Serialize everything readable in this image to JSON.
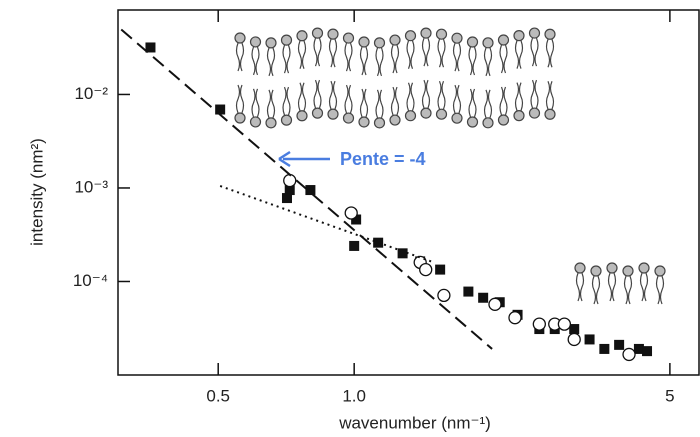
{
  "chart_data": {
    "type": "scatter",
    "xlabel": "wavenumber (nm⁻¹)",
    "ylabel": "intensity (nm²)",
    "log_x": true,
    "log_y": true,
    "xlim": [
      0.3,
      5.8
    ],
    "ylim": [
      1e-05,
      0.08
    ],
    "xticks": [
      0.5,
      {
        "value": 1,
        "label": "1.0"
      },
      5
    ],
    "yticks": [
      {
        "value": 0.01,
        "label": "10⁻²"
      },
      {
        "value": 0.001,
        "label": "10⁻³"
      },
      {
        "value": 0.0001,
        "label": "10⁻⁴"
      }
    ],
    "annotation": {
      "text": "Pente = -4",
      "color": "#4a7de0"
    },
    "series": [
      {
        "marker": "filled-square",
        "color": "#111111",
        "x": [
          0.354,
          0.505,
          0.72,
          0.71,
          0.8,
          1.01,
          1.0,
          1.13,
          1.28,
          1.4,
          1.55,
          1.79,
          1.93,
          2.1,
          2.3,
          2.57,
          2.78,
          3.07,
          3.32,
          3.58,
          3.86,
          4.27,
          4.45
        ],
        "values": [
          0.0318,
          0.0069,
          0.00095,
          0.00078,
          0.00095,
          0.00046,
          0.00024,
          0.00026,
          0.0002,
          0.000164,
          0.000134,
          7.8e-05,
          6.7e-05,
          6e-05,
          4.4e-05,
          3.1e-05,
          3.1e-05,
          3.1e-05,
          2.4e-05,
          1.9e-05,
          2.1e-05,
          1.9e-05,
          1.8e-05
        ]
      },
      {
        "marker": "open-circle",
        "color": "#111111",
        "x": [
          0.72,
          0.985,
          1.4,
          1.44,
          1.58,
          2.05,
          2.27,
          2.57,
          2.78,
          2.92,
          3.07,
          4.06
        ],
        "values": [
          0.0012,
          0.00054,
          0.00016,
          0.000134,
          7.1e-05,
          5.7e-05,
          4.1e-05,
          3.5e-05,
          3.5e-05,
          3.5e-05,
          2.4e-05,
          1.66e-05
        ]
      },
      {
        "marker": "dashed-line",
        "color": "#111111",
        "x": [
          0.305,
          2.02
        ],
        "values": [
          0.0495,
          1.9e-05
        ]
      },
      {
        "marker": "dotted-line",
        "color": "#111111",
        "x": [
          0.505,
          1.48
        ],
        "values": [
          0.00105,
          0.000164
        ]
      }
    ]
  }
}
